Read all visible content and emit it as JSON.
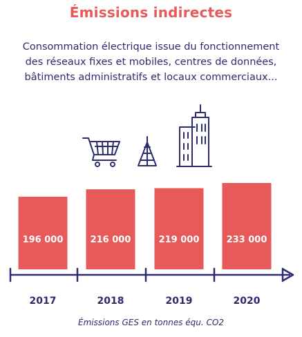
{
  "title": "Émissions indirectes",
  "subtitle_lines": [
    "Consommation électrique issue du fonctionnement",
    "des réseaux fixes et mobiles, centres de données,",
    "bâtiments administratifs et locaux commerciaux..."
  ],
  "caption": "Émissions GES en tonnes équ. CO2",
  "icons": [
    "shopping-cart-icon",
    "antenna-tower-icon",
    "office-buildings-icon"
  ],
  "colors": {
    "title": "#e85a5a",
    "text": "#2b2b6e",
    "bar": "#e85a5a",
    "bar_label": "#ffffff",
    "axis": "#2b2b6e"
  },
  "chart_data": {
    "type": "bar",
    "categories": [
      "2017",
      "2018",
      "2019",
      "2020"
    ],
    "values": [
      196000,
      216000,
      219000,
      233000
    ],
    "value_labels": [
      "196 000",
      "216 000",
      "219 000",
      "233 000"
    ],
    "grid": false
  }
}
